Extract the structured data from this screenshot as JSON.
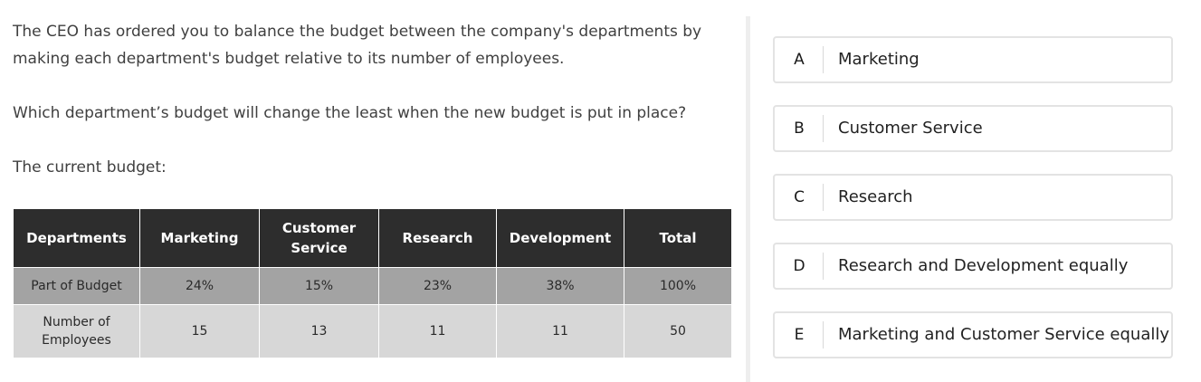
{
  "question": {
    "intro": "The CEO has ordered you to balance the budget between the company's departments by making each department's budget relative to its number of employees.",
    "ask": "Which department’s budget will change the least when the new budget is put in place?",
    "budget_label": "The current budget:"
  },
  "table": {
    "headers": [
      "Departments",
      "Marketing",
      "Customer Service",
      "Research",
      "Development",
      "Total"
    ],
    "rows": [
      {
        "label": "Part of Budget",
        "values": [
          "24%",
          "15%",
          "23%",
          "38%",
          "100%"
        ]
      },
      {
        "label": "Number of Employees",
        "values": [
          "15",
          "13",
          "11",
          "11",
          "50"
        ]
      }
    ]
  },
  "options": [
    {
      "letter": "A",
      "label": "Marketing"
    },
    {
      "letter": "B",
      "label": "Customer Service"
    },
    {
      "letter": "C",
      "label": "Research"
    },
    {
      "letter": "D",
      "label": "Research and Development equally"
    },
    {
      "letter": "E",
      "label": "Marketing and Customer Service equally"
    }
  ]
}
